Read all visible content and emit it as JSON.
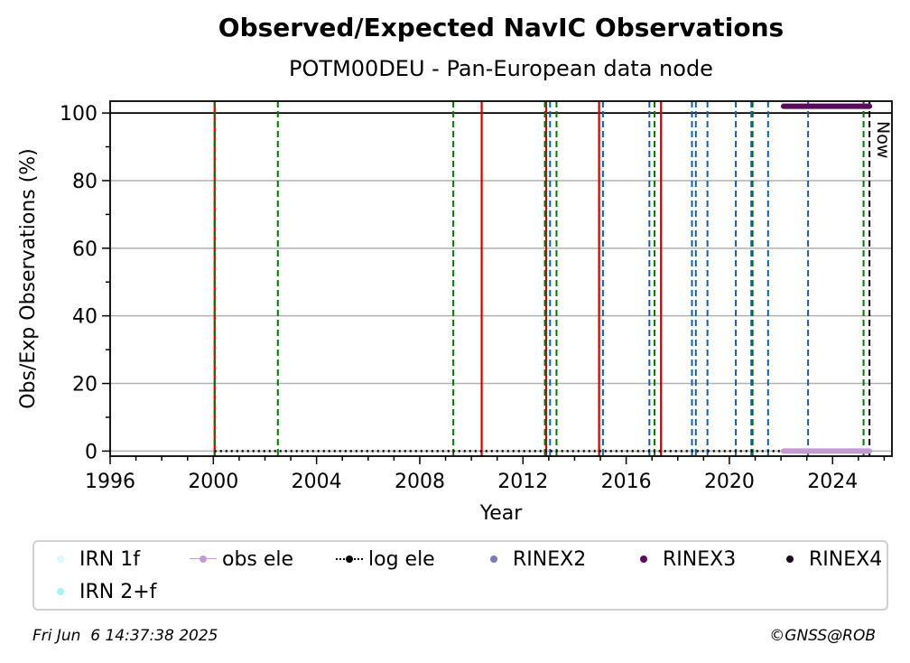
{
  "chart_data": {
    "type": "line",
    "title": "Observed/Expected NavIC Observations",
    "subtitle": "POTM00DEU - Pan-European data node",
    "xlabel": "Year",
    "ylabel": "Obs/Exp Observations (%)",
    "xlim": [
      1996.0,
      2026.3
    ],
    "ylim": [
      -1.5,
      103.5
    ],
    "x_ticks": [
      1996,
      2000,
      2004,
      2008,
      2012,
      2016,
      2020,
      2024
    ],
    "y_ticks": [
      0,
      20,
      40,
      60,
      80,
      100
    ],
    "grid": "horizontal",
    "reference_line": 100,
    "now_label": "Now",
    "now_year": 2025.43,
    "red_events": [
      2000.05,
      2010.4,
      2012.9,
      2014.95,
      2017.35
    ],
    "green_events": [
      2000.05,
      2002.5,
      2009.3,
      2012.85,
      2013.3,
      2017.1,
      2020.9,
      2025.2
    ],
    "blue_events": [
      2013.05,
      2015.1,
      2016.9,
      2018.55,
      2018.7,
      2019.15,
      2020.25,
      2020.85,
      2021.5,
      2023.05
    ],
    "series": [
      {
        "name": "log ele",
        "x": [
          2000.05,
          2025.43
        ],
        "y": [
          0,
          0
        ]
      },
      {
        "name": "obs ele",
        "x": [
          2022.1,
          2025.43
        ],
        "y": [
          0,
          0
        ]
      },
      {
        "name": "RINEX3",
        "x": [
          2022.1,
          2025.43
        ],
        "y": [
          102,
          102
        ]
      }
    ],
    "legend_position": "bottom",
    "legend": [
      {
        "label": "IRN 1f",
        "color": "#d8fafa",
        "kind": "dot"
      },
      {
        "label": "obs ele",
        "color": "#c39bd3",
        "kind": "line-dot"
      },
      {
        "label": "log ele",
        "color": "#000000",
        "kind": "dotted-dot"
      },
      {
        "label": "RINEX2",
        "color": "#7b7bb8",
        "kind": "dot"
      },
      {
        "label": "RINEX3",
        "color": "#5b0a5e",
        "kind": "dot"
      },
      {
        "label": "RINEX4",
        "color": "#1a0a1a",
        "kind": "dot"
      },
      {
        "label": "IRN 2+f",
        "color": "#a8f2f2",
        "kind": "dot"
      }
    ],
    "colors": {
      "red": "#d00000",
      "green": "#007800",
      "blue": "#1060a8",
      "obs": "#c39bd3",
      "rinex3": "#5b0a5e"
    }
  },
  "footer": {
    "timestamp": "Fri Jun  6 14:37:38 2025",
    "credit": "©GNSS@ROB"
  }
}
